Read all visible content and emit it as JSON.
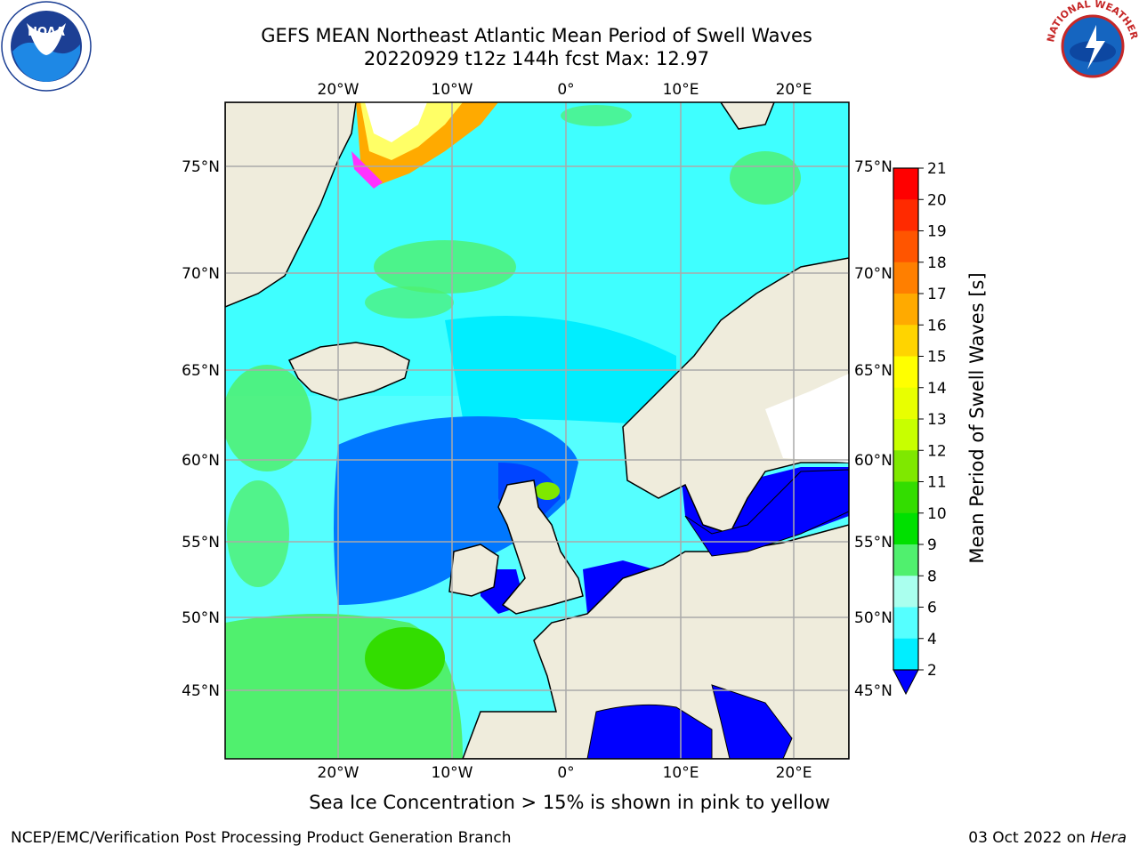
{
  "title_line1": "GEFS MEAN Northeast Atlantic Mean Period of Swell Waves",
  "title_line2": "20220929 t12z 144h fcst   Max: 12.97",
  "logos": {
    "left": "noaa-logo",
    "right": "national-weather-service-logo",
    "noaa_text": "NOAA",
    "nws_ring_text": "NATIONAL WEATHER SERVICE"
  },
  "map": {
    "lon_ticks": [
      "20°W",
      "10°W",
      "0°",
      "10°E",
      "20°E"
    ],
    "lat_ticks_left": [
      "75°N",
      "70°N",
      "65°N",
      "60°N",
      "55°N",
      "50°N",
      "45°N"
    ],
    "lat_ticks_right": [
      "75°N",
      "70°N",
      "65°N",
      "60°N",
      "55°N",
      "50°N",
      "45°N"
    ],
    "lon_values": [
      -20,
      -10,
      0,
      10,
      20
    ],
    "lat_values": [
      75,
      70,
      65,
      60,
      55,
      50,
      45
    ],
    "land_color": "#efecdc",
    "sea_ice_color_range": [
      "#ff33ff",
      "#ffff66"
    ]
  },
  "colorbar": {
    "label": "Mean Period of Swell Waves [s]",
    "tick_labels": [
      "21",
      "20",
      "19",
      "18",
      "17",
      "16",
      "15",
      "14",
      "13",
      "12",
      "11",
      "10",
      "9",
      "8",
      "6",
      "4",
      "2"
    ],
    "colors": [
      "#ff0000",
      "#ff2a00",
      "#ff5500",
      "#ff7f00",
      "#ffaa00",
      "#ffd400",
      "#ffff00",
      "#e8ff00",
      "#c8ff00",
      "#7fe800",
      "#33dd00",
      "#00e000",
      "#50f06e",
      "#aaffee",
      "#55ffff",
      "#00eeff",
      "#0077ff"
    ],
    "under_color": "#0000ff"
  },
  "ice_note": "Sea Ice Concentration > 15% is shown in pink to yellow",
  "footer_left": "NCEP/EMC/Verification Post Processing Product Generation Branch",
  "footer_date": "03 Oct 2022 on ",
  "footer_host": "Hera"
}
